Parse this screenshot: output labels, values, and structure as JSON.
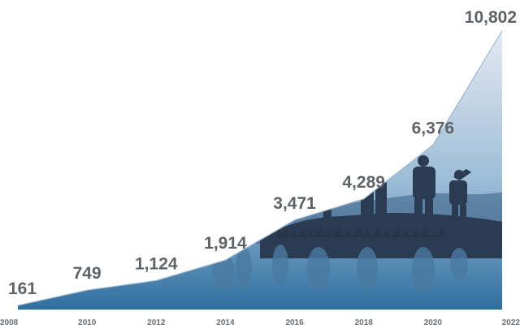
{
  "chart_data": {
    "type": "area",
    "x": [
      "2008",
      "2010",
      "2012",
      "2014",
      "2016",
      "2018",
      "2020",
      "2022"
    ],
    "values": [
      161,
      749,
      1124,
      1914,
      3471,
      4289,
      6376,
      10802
    ],
    "data_labels": [
      "161",
      "749",
      "1,124",
      "1,914",
      "3,471",
      "4,289",
      "6,376",
      "10,802"
    ],
    "title": "",
    "xlabel": "",
    "ylabel": "",
    "ylim": [
      0,
      10802
    ],
    "grid": false,
    "legend": "none"
  },
  "colors": {
    "area_top": "#e4e9f2",
    "area_bottom": "#2f6f9f",
    "label": "#5f6368",
    "silhouette": "#2a3b52",
    "reflection": "#4a7aa0"
  }
}
